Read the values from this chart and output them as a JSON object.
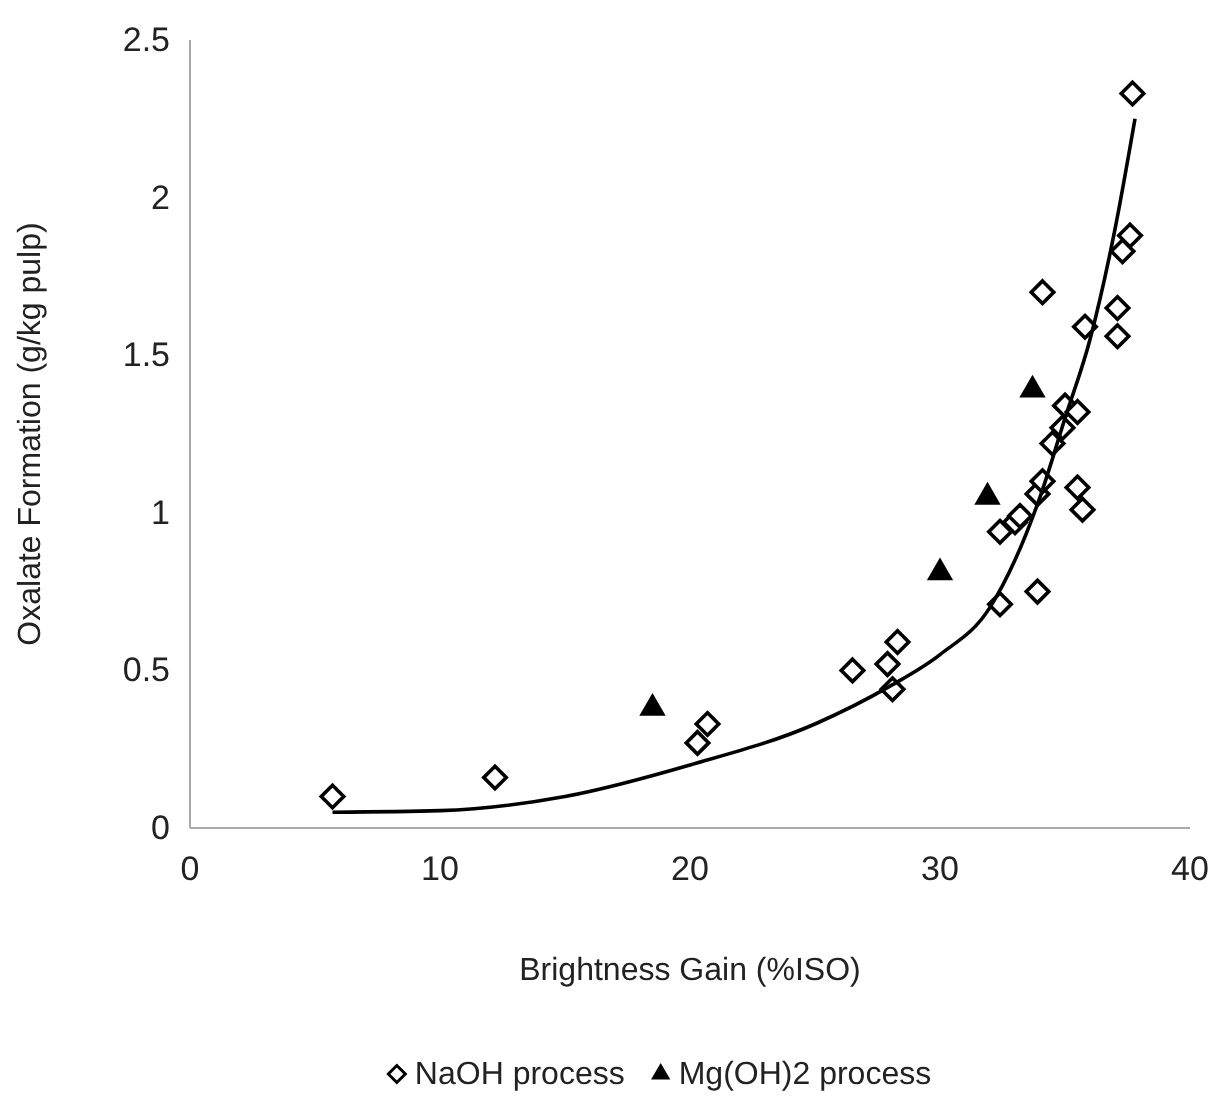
{
  "chart_data": {
    "type": "scatter",
    "xlabel": "Brightness Gain (%ISO)",
    "ylabel": "Oxalate Formation (g/kg pulp)",
    "xlim": [
      0,
      40
    ],
    "xticks": [
      0,
      10,
      20,
      30,
      40
    ],
    "ylim": [
      0,
      2.5
    ],
    "yticks": [
      0,
      0.5,
      1,
      1.5,
      2,
      2.5
    ],
    "grid": false,
    "legend": "bottom",
    "series": [
      {
        "name": "NaOH process",
        "color": "#000000",
        "marker": "diamond",
        "x": [
          5.7,
          12.2,
          20.3,
          20.7,
          26.5,
          27.9,
          28.1,
          28.3,
          32.4,
          32.4,
          33.0,
          33.2,
          33.9,
          33.9,
          34.1,
          34.5,
          34.9,
          35.0,
          35.5,
          35.5,
          35.7,
          35.8,
          34.1,
          37.1,
          37.1,
          37.3,
          37.6,
          37.7
        ],
        "values": [
          0.1,
          0.16,
          0.27,
          0.33,
          0.5,
          0.52,
          0.44,
          0.59,
          0.71,
          0.94,
          0.97,
          0.99,
          0.75,
          1.06,
          1.1,
          1.22,
          1.27,
          1.34,
          1.32,
          1.08,
          1.01,
          1.59,
          1.7,
          1.65,
          1.56,
          1.83,
          1.88,
          2.33
        ]
      },
      {
        "name": "Mg(OH)2 process",
        "color": "#000000",
        "marker": "triangle",
        "x": [
          18.5,
          30.0,
          31.9,
          33.7
        ],
        "values": [
          0.38,
          0.81,
          1.05,
          1.39
        ]
      },
      {
        "type": "line",
        "color": "#000000",
        "x": [
          5.7,
          10,
          15,
          20,
          25,
          28,
          30,
          32,
          33,
          34,
          35,
          36,
          37,
          37.8
        ],
        "values": [
          0.05,
          0.055,
          0.1,
          0.2,
          0.33,
          0.45,
          0.55,
          0.7,
          0.85,
          1.05,
          1.3,
          1.55,
          1.9,
          2.25
        ]
      }
    ]
  }
}
